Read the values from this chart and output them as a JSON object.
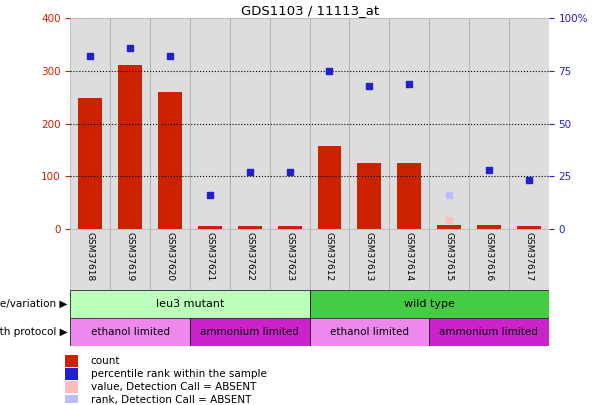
{
  "title": "GDS1103 / 11113_at",
  "samples": [
    "GSM37618",
    "GSM37619",
    "GSM37620",
    "GSM37621",
    "GSM37622",
    "GSM37623",
    "GSM37612",
    "GSM37613",
    "GSM37614",
    "GSM37615",
    "GSM37616",
    "GSM37617"
  ],
  "counts": [
    248,
    312,
    260,
    5,
    5,
    5,
    158,
    125,
    125,
    8,
    8,
    5
  ],
  "percentile_ranks": [
    82,
    86,
    82,
    16,
    27,
    27,
    75,
    68,
    69,
    null,
    28,
    23
  ],
  "absent_values": [
    null,
    null,
    null,
    null,
    null,
    null,
    null,
    null,
    null,
    16,
    null,
    null
  ],
  "absent_ranks": [
    null,
    null,
    null,
    null,
    null,
    null,
    null,
    null,
    null,
    16,
    null,
    null
  ],
  "ylim_left": [
    0,
    400
  ],
  "ylim_right": [
    0,
    100
  ],
  "yticks_left": [
    0,
    100,
    200,
    300,
    400
  ],
  "yticks_right": [
    0,
    25,
    50,
    75,
    100
  ],
  "ytick_labels_right": [
    "0",
    "25",
    "50",
    "75",
    "100%"
  ],
  "bar_color": "#cc2200",
  "dot_color": "#2222cc",
  "absent_val_color": "#ffbbbb",
  "absent_rank_color": "#bbbbff",
  "tick_label_color_left": "#cc2200",
  "tick_label_color_right": "#2222cc",
  "background_color": "#ffffff",
  "col_bg_color": "#dddddd",
  "col_border_color": "#aaaaaa",
  "genotype_row": [
    {
      "label": "leu3 mutant",
      "start": 0,
      "end": 6,
      "color": "#bbffbb"
    },
    {
      "label": "wild type",
      "start": 6,
      "end": 12,
      "color": "#44cc44"
    }
  ],
  "growth_row": [
    {
      "label": "ethanol limited",
      "start": 0,
      "end": 3,
      "color": "#ee88ee"
    },
    {
      "label": "ammonium limited",
      "start": 3,
      "end": 6,
      "color": "#cc22cc"
    },
    {
      "label": "ethanol limited",
      "start": 6,
      "end": 9,
      "color": "#ee88ee"
    },
    {
      "label": "ammonium limited",
      "start": 9,
      "end": 12,
      "color": "#cc22cc"
    }
  ],
  "legend_items": [
    {
      "label": "count",
      "color": "#cc2200"
    },
    {
      "label": "percentile rank within the sample",
      "color": "#2222cc"
    },
    {
      "label": "value, Detection Call = ABSENT",
      "color": "#ffbbbb"
    },
    {
      "label": "rank, Detection Call = ABSENT",
      "color": "#bbbbff"
    }
  ]
}
